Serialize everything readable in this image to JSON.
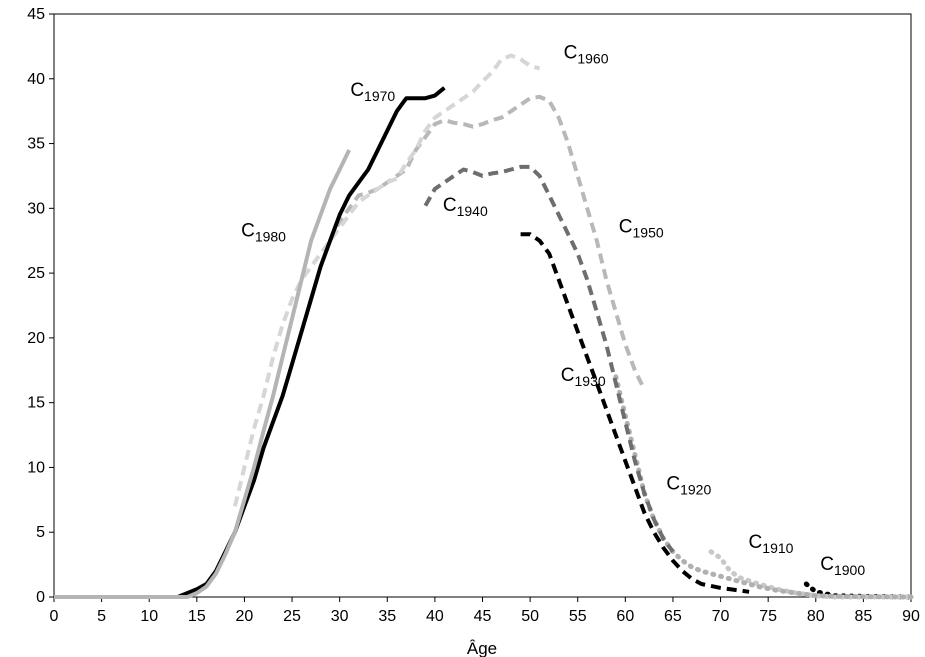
{
  "chart_data": {
    "type": "line",
    "title": "",
    "xlabel": "Âge",
    "ylabel": "",
    "xlim": [
      0,
      90
    ],
    "ylim": [
      0,
      45
    ],
    "xticks": [
      0,
      5,
      10,
      15,
      20,
      25,
      30,
      35,
      40,
      45,
      50,
      55,
      60,
      65,
      70,
      75,
      80,
      85,
      90
    ],
    "yticks": [
      0,
      5,
      10,
      15,
      20,
      25,
      30,
      35,
      40,
      45
    ],
    "grid": false,
    "legend": "none",
    "series": [
      {
        "name": "C1900",
        "prefix": "C",
        "sub": "1900",
        "color": "#000000",
        "style": "dotted",
        "points": [
          [
            79,
            1.0
          ],
          [
            80,
            0.4
          ],
          [
            82,
            0.1
          ],
          [
            85,
            0.05
          ],
          [
            90,
            0.0
          ]
        ]
      },
      {
        "name": "C1910",
        "prefix": "C",
        "sub": "1910",
        "color": "#c8c8c8",
        "style": "dotted",
        "points": [
          [
            69,
            3.5
          ],
          [
            70,
            3.0
          ],
          [
            71,
            2.0
          ],
          [
            72,
            1.5
          ],
          [
            74,
            1.0
          ],
          [
            76,
            0.6
          ],
          [
            78,
            0.3
          ],
          [
            80,
            0.1
          ],
          [
            82,
            0.0
          ],
          [
            90,
            0.0
          ]
        ]
      },
      {
        "name": "C1920",
        "prefix": "C",
        "sub": "1920",
        "color": "#b0b0b0",
        "style": "dotted",
        "points": [
          [
            59,
            17.0
          ],
          [
            60,
            14.0
          ],
          [
            61,
            11.0
          ],
          [
            62,
            8.0
          ],
          [
            63,
            6.0
          ],
          [
            64,
            4.5
          ],
          [
            65,
            3.5
          ],
          [
            66,
            2.8
          ],
          [
            67,
            2.3
          ],
          [
            68,
            2.0
          ],
          [
            70,
            1.6
          ],
          [
            72,
            1.2
          ],
          [
            74,
            0.8
          ],
          [
            76,
            0.5
          ],
          [
            78,
            0.3
          ],
          [
            80,
            0.1
          ],
          [
            82,
            0.05
          ],
          [
            90,
            0.0
          ]
        ]
      },
      {
        "name": "C1930",
        "prefix": "C",
        "sub": "1930",
        "color": "#000000",
        "style": "dashed",
        "points": [
          [
            49,
            28.0
          ],
          [
            50,
            28.0
          ],
          [
            51,
            27.5
          ],
          [
            52,
            26.5
          ],
          [
            53,
            24.5
          ],
          [
            54,
            22.5
          ],
          [
            55,
            20.5
          ],
          [
            56,
            18.5
          ],
          [
            57,
            16.5
          ],
          [
            58,
            14.5
          ],
          [
            59,
            12.5
          ],
          [
            60,
            10.5
          ],
          [
            61,
            8.5
          ],
          [
            62,
            6.5
          ],
          [
            63,
            5.0
          ],
          [
            64,
            3.8
          ],
          [
            65,
            2.8
          ],
          [
            66,
            2.0
          ],
          [
            67,
            1.4
          ],
          [
            68,
            1.0
          ],
          [
            70,
            0.7
          ],
          [
            72,
            0.5
          ],
          [
            73,
            0.4
          ]
        ]
      },
      {
        "name": "C1940",
        "prefix": "C",
        "sub": "1940",
        "color": "#6e6e6e",
        "style": "dashed",
        "points": [
          [
            39,
            30.2
          ],
          [
            40,
            31.5
          ],
          [
            41,
            32.0
          ],
          [
            42,
            32.5
          ],
          [
            43,
            33.0
          ],
          [
            44,
            32.8
          ],
          [
            45,
            32.5
          ],
          [
            46,
            32.7
          ],
          [
            47,
            32.8
          ],
          [
            48,
            33.0
          ],
          [
            49,
            33.2
          ],
          [
            50,
            33.2
          ],
          [
            51,
            32.5
          ],
          [
            52,
            31.0
          ],
          [
            53,
            29.5
          ],
          [
            54,
            28.0
          ],
          [
            55,
            26.5
          ],
          [
            56,
            24.5
          ],
          [
            57,
            22.0
          ],
          [
            58,
            19.5
          ],
          [
            59,
            16.5
          ],
          [
            60,
            13.5
          ],
          [
            61,
            10.5
          ],
          [
            62,
            8.0
          ],
          [
            63,
            6.0
          ],
          [
            64,
            4.5
          ],
          [
            65,
            3.5
          ]
        ]
      },
      {
        "name": "C1950",
        "prefix": "C",
        "sub": "1950",
        "color": "#b8b8b8",
        "style": "dashed",
        "points": [
          [
            29,
            27.5
          ],
          [
            30,
            29.0
          ],
          [
            31,
            30.0
          ],
          [
            32,
            31.0
          ],
          [
            33,
            31.2
          ],
          [
            34,
            31.5
          ],
          [
            35,
            32.0
          ],
          [
            36,
            32.5
          ],
          [
            37,
            33.0
          ],
          [
            38,
            34.5
          ],
          [
            39,
            35.5
          ],
          [
            40,
            36.5
          ],
          [
            41,
            36.8
          ],
          [
            42,
            36.6
          ],
          [
            43,
            36.5
          ],
          [
            44,
            36.3
          ],
          [
            45,
            36.5
          ],
          [
            46,
            36.8
          ],
          [
            47,
            37.0
          ],
          [
            48,
            37.5
          ],
          [
            49,
            38.0
          ],
          [
            50,
            38.5
          ],
          [
            51,
            38.6
          ],
          [
            52,
            38.3
          ],
          [
            53,
            37.0
          ],
          [
            54,
            35.0
          ],
          [
            55,
            32.5
          ],
          [
            56,
            30.0
          ],
          [
            57,
            27.5
          ],
          [
            58,
            24.5
          ],
          [
            59,
            22.0
          ],
          [
            60,
            19.5
          ],
          [
            61,
            17.5
          ],
          [
            62,
            16.0
          ]
        ]
      },
      {
        "name": "C1960",
        "prefix": "C",
        "sub": "1960",
        "color": "#d6d6d6",
        "style": "dashed",
        "points": [
          [
            19,
            7.0
          ],
          [
            20,
            10.0
          ],
          [
            21,
            13.0
          ],
          [
            22,
            15.5
          ],
          [
            23,
            18.5
          ],
          [
            24,
            21.0
          ],
          [
            25,
            23.0
          ],
          [
            26,
            24.5
          ],
          [
            27,
            25.5
          ],
          [
            28,
            26.5
          ],
          [
            29,
            27.5
          ],
          [
            30,
            28.5
          ],
          [
            31,
            29.5
          ],
          [
            32,
            30.5
          ],
          [
            33,
            31.0
          ],
          [
            34,
            31.5
          ],
          [
            35,
            32.0
          ],
          [
            36,
            32.3
          ],
          [
            37,
            33.5
          ],
          [
            38,
            34.5
          ],
          [
            39,
            36.0
          ],
          [
            40,
            37.0
          ],
          [
            41,
            37.5
          ],
          [
            42,
            38.0
          ],
          [
            43,
            38.5
          ],
          [
            44,
            39.0
          ],
          [
            45,
            39.8
          ],
          [
            46,
            40.5
          ],
          [
            47,
            41.5
          ],
          [
            48,
            41.8
          ],
          [
            49,
            41.5
          ],
          [
            50,
            41.0
          ],
          [
            51,
            40.8
          ]
        ]
      },
      {
        "name": "C1970",
        "prefix": "C",
        "sub": "1970",
        "color": "#000000",
        "style": "solid",
        "points": [
          [
            9,
            0.0
          ],
          [
            10,
            0.0
          ],
          [
            11,
            0.0
          ],
          [
            12,
            0.0
          ],
          [
            13,
            0.0
          ],
          [
            14,
            0.3
          ],
          [
            15,
            0.6
          ],
          [
            16,
            1.0
          ],
          [
            17,
            2.0
          ],
          [
            18,
            3.5
          ],
          [
            19,
            5.0
          ],
          [
            20,
            7.0
          ],
          [
            21,
            9.0
          ],
          [
            22,
            11.5
          ],
          [
            23,
            13.5
          ],
          [
            24,
            15.5
          ],
          [
            25,
            18.0
          ],
          [
            26,
            20.5
          ],
          [
            27,
            23.0
          ],
          [
            28,
            25.5
          ],
          [
            29,
            27.5
          ],
          [
            30,
            29.5
          ],
          [
            31,
            31.0
          ],
          [
            32,
            32.0
          ],
          [
            33,
            33.0
          ],
          [
            34,
            34.5
          ],
          [
            35,
            36.0
          ],
          [
            36,
            37.5
          ],
          [
            37,
            38.5
          ],
          [
            38,
            38.5
          ],
          [
            39,
            38.5
          ],
          [
            40,
            38.7
          ],
          [
            41,
            39.3
          ]
        ]
      },
      {
        "name": "C1980",
        "prefix": "C",
        "sub": "1980",
        "color": "#b4b4b4",
        "style": "solid",
        "points": [
          [
            0,
            0.0
          ],
          [
            5,
            0.0
          ],
          [
            10,
            0.0
          ],
          [
            14,
            0.0
          ],
          [
            15,
            0.3
          ],
          [
            16,
            0.8
          ],
          [
            17,
            1.8
          ],
          [
            18,
            3.3
          ],
          [
            19,
            5.0
          ],
          [
            20,
            7.5
          ],
          [
            21,
            10.0
          ],
          [
            22,
            12.8
          ],
          [
            23,
            15.5
          ],
          [
            24,
            18.5
          ],
          [
            25,
            21.5
          ],
          [
            26,
            24.5
          ],
          [
            27,
            27.5
          ],
          [
            28,
            29.5
          ],
          [
            29,
            31.5
          ],
          [
            30,
            33.0
          ],
          [
            31,
            34.5
          ]
        ]
      }
    ]
  }
}
